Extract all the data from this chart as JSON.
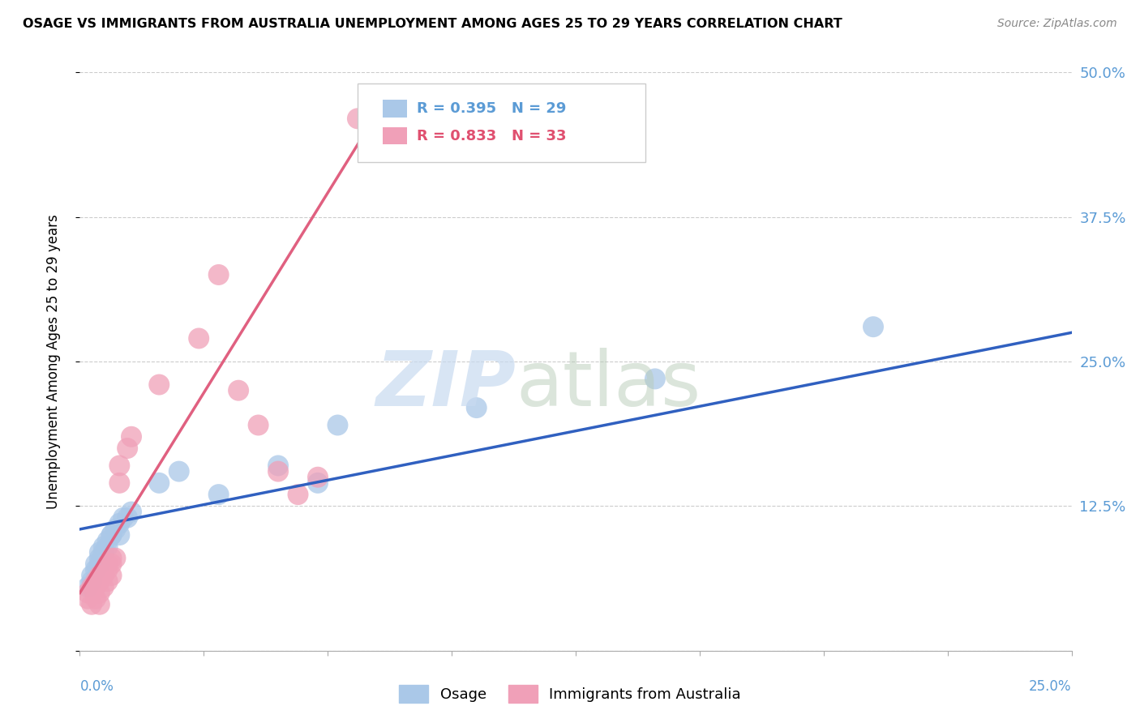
{
  "title": "OSAGE VS IMMIGRANTS FROM AUSTRALIA UNEMPLOYMENT AMONG AGES 25 TO 29 YEARS CORRELATION CHART",
  "source": "Source: ZipAtlas.com",
  "ylabel": "Unemployment Among Ages 25 to 29 years",
  "ytick_labels": [
    "",
    "12.5%",
    "25.0%",
    "37.5%",
    "50.0%"
  ],
  "ytick_values": [
    0,
    0.125,
    0.25,
    0.375,
    0.5
  ],
  "xlim": [
    0,
    0.25
  ],
  "ylim": [
    0,
    0.5
  ],
  "legend_label1": "Osage",
  "legend_label2": "Immigrants from Australia",
  "r1": "0.395",
  "n1": "29",
  "r2": "0.833",
  "n2": "33",
  "color_blue": "#aac8e8",
  "color_pink": "#f0a0b8",
  "color_blue_text": "#5b9bd5",
  "color_pink_text": "#e05070",
  "color_trendline_blue": "#3060c0",
  "color_trendline_pink": "#e06080",
  "osage_x": [
    0.002,
    0.003,
    0.003,
    0.004,
    0.004,
    0.005,
    0.005,
    0.005,
    0.006,
    0.006,
    0.007,
    0.007,
    0.008,
    0.008,
    0.009,
    0.01,
    0.01,
    0.011,
    0.012,
    0.013,
    0.02,
    0.025,
    0.035,
    0.05,
    0.06,
    0.065,
    0.1,
    0.145,
    0.2
  ],
  "osage_y": [
    0.055,
    0.06,
    0.065,
    0.07,
    0.075,
    0.075,
    0.08,
    0.085,
    0.085,
    0.09,
    0.09,
    0.095,
    0.1,
    0.1,
    0.105,
    0.1,
    0.11,
    0.115,
    0.115,
    0.12,
    0.145,
    0.155,
    0.135,
    0.16,
    0.145,
    0.195,
    0.21,
    0.235,
    0.28
  ],
  "aus_x": [
    0.002,
    0.002,
    0.003,
    0.003,
    0.004,
    0.004,
    0.004,
    0.005,
    0.005,
    0.005,
    0.005,
    0.006,
    0.006,
    0.007,
    0.007,
    0.007,
    0.008,
    0.008,
    0.008,
    0.009,
    0.01,
    0.01,
    0.012,
    0.013,
    0.02,
    0.03,
    0.035,
    0.04,
    0.045,
    0.05,
    0.055,
    0.06,
    0.07
  ],
  "aus_y": [
    0.045,
    0.05,
    0.04,
    0.055,
    0.045,
    0.055,
    0.06,
    0.04,
    0.05,
    0.06,
    0.065,
    0.055,
    0.065,
    0.06,
    0.07,
    0.075,
    0.065,
    0.075,
    0.08,
    0.08,
    0.145,
    0.16,
    0.175,
    0.185,
    0.23,
    0.27,
    0.325,
    0.225,
    0.195,
    0.155,
    0.135,
    0.15,
    0.46
  ]
}
